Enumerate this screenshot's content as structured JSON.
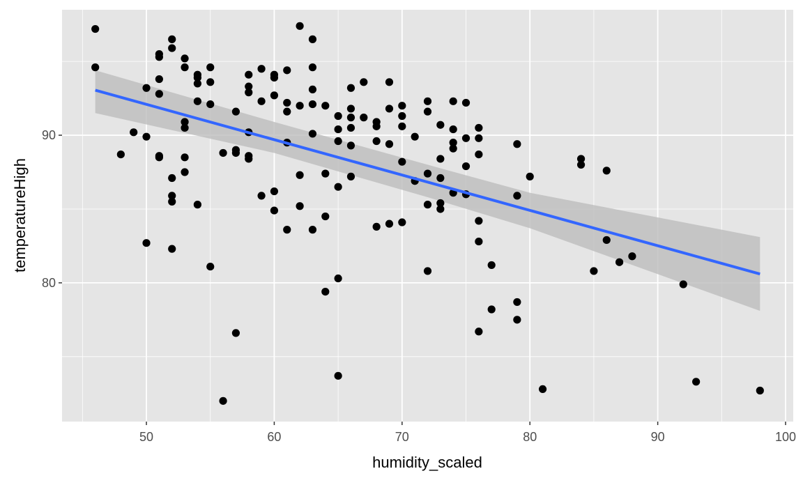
{
  "chart_data": {
    "type": "scatter",
    "title": "",
    "xlabel": "humidity_scaled",
    "ylabel": "temperatureHigh",
    "xlim": [
      43.4,
      100.6
    ],
    "ylim": [
      70.6,
      98.5
    ],
    "x_ticks": [
      50,
      60,
      70,
      80,
      90,
      100
    ],
    "y_ticks": [
      80,
      90
    ],
    "x_tick_labels": [
      "50",
      "60",
      "70",
      "80",
      "90",
      "100"
    ],
    "y_tick_labels": [
      "80",
      "90"
    ],
    "grid": true,
    "legend": "none",
    "colors": {
      "panel_background": "#e5e5e5",
      "grid_line": "#ffffff",
      "point": "#000000",
      "smooth_line": "#3366ff",
      "confidence_band": "#bdbdbd"
    },
    "smooth": {
      "method": "linear",
      "se": true,
      "line": [
        [
          46,
          93.05
        ],
        [
          98,
          80.6
        ]
      ],
      "band_upper": [
        [
          46,
          94.4
        ],
        [
          60,
          90.9
        ],
        [
          72,
          88.0
        ],
        [
          80,
          86.1
        ],
        [
          98,
          83.1
        ]
      ],
      "band_lower": [
        [
          46,
          91.5
        ],
        [
          60,
          88.8
        ],
        [
          72,
          85.8
        ],
        [
          80,
          83.7
        ],
        [
          98,
          78.1
        ]
      ]
    },
    "points": [
      [
        46,
        97.2
      ],
      [
        46,
        94.6
      ],
      [
        48,
        88.7
      ],
      [
        49,
        90.2
      ],
      [
        50,
        93.2
      ],
      [
        50,
        89.9
      ],
      [
        50,
        82.7
      ],
      [
        51,
        95.5
      ],
      [
        51,
        95.3
      ],
      [
        51,
        93.8
      ],
      [
        51,
        92.8
      ],
      [
        51,
        88.6
      ],
      [
        51,
        88.5
      ],
      [
        52,
        96.5
      ],
      [
        52,
        95.9
      ],
      [
        52,
        87.1
      ],
      [
        52,
        85.9
      ],
      [
        52,
        85.5
      ],
      [
        52,
        82.3
      ],
      [
        53,
        95.2
      ],
      [
        53,
        94.6
      ],
      [
        53,
        90.9
      ],
      [
        53,
        90.5
      ],
      [
        53,
        88.5
      ],
      [
        53,
        87.5
      ],
      [
        54,
        94.1
      ],
      [
        54,
        93.9
      ],
      [
        54,
        93.5
      ],
      [
        54,
        92.3
      ],
      [
        54,
        85.3
      ],
      [
        55,
        94.6
      ],
      [
        55,
        93.6
      ],
      [
        55,
        92.1
      ],
      [
        55,
        81.1
      ],
      [
        56,
        88.8
      ],
      [
        56,
        72.0
      ],
      [
        57,
        91.6
      ],
      [
        57,
        89.0
      ],
      [
        57,
        88.8
      ],
      [
        57,
        76.6
      ],
      [
        58,
        94.1
      ],
      [
        58,
        93.3
      ],
      [
        58,
        92.9
      ],
      [
        58,
        90.2
      ],
      [
        58,
        88.6
      ],
      [
        58,
        88.4
      ],
      [
        59,
        94.5
      ],
      [
        59,
        92.3
      ],
      [
        59,
        85.9
      ],
      [
        60,
        94.1
      ],
      [
        60,
        93.9
      ],
      [
        60,
        92.7
      ],
      [
        60,
        86.2
      ],
      [
        60,
        84.9
      ],
      [
        61,
        94.4
      ],
      [
        61,
        92.2
      ],
      [
        61,
        91.6
      ],
      [
        61,
        89.5
      ],
      [
        61,
        83.6
      ],
      [
        62,
        97.4
      ],
      [
        62,
        92.0
      ],
      [
        62,
        87.3
      ],
      [
        62,
        85.2
      ],
      [
        63,
        96.5
      ],
      [
        63,
        94.6
      ],
      [
        63,
        93.1
      ],
      [
        63,
        92.1
      ],
      [
        63,
        90.1
      ],
      [
        63,
        83.6
      ],
      [
        64,
        92.0
      ],
      [
        64,
        87.4
      ],
      [
        64,
        84.5
      ],
      [
        64,
        79.4
      ],
      [
        65,
        91.3
      ],
      [
        65,
        90.4
      ],
      [
        65,
        89.6
      ],
      [
        65,
        86.5
      ],
      [
        65,
        80.3
      ],
      [
        65,
        73.7
      ],
      [
        66,
        93.2
      ],
      [
        66,
        91.8
      ],
      [
        66,
        91.2
      ],
      [
        66,
        90.5
      ],
      [
        66,
        89.3
      ],
      [
        66,
        87.2
      ],
      [
        67,
        93.6
      ],
      [
        67,
        91.2
      ],
      [
        68,
        90.9
      ],
      [
        68,
        90.6
      ],
      [
        68,
        89.6
      ],
      [
        68,
        83.8
      ],
      [
        69,
        93.6
      ],
      [
        69,
        91.8
      ],
      [
        69,
        89.4
      ],
      [
        69,
        84.0
      ],
      [
        70,
        92.0
      ],
      [
        70,
        91.3
      ],
      [
        70,
        90.6
      ],
      [
        70,
        88.2
      ],
      [
        70,
        84.1
      ],
      [
        71,
        89.9
      ],
      [
        71,
        86.9
      ],
      [
        72,
        92.3
      ],
      [
        72,
        91.6
      ],
      [
        72,
        87.4
      ],
      [
        72,
        85.3
      ],
      [
        72,
        80.8
      ],
      [
        73,
        90.7
      ],
      [
        73,
        88.4
      ],
      [
        73,
        87.1
      ],
      [
        73,
        85.4
      ],
      [
        73,
        85.0
      ],
      [
        74,
        92.3
      ],
      [
        74,
        90.4
      ],
      [
        74,
        89.5
      ],
      [
        74,
        89.1
      ],
      [
        74,
        86.1
      ],
      [
        75,
        92.2
      ],
      [
        75,
        89.8
      ],
      [
        75,
        87.9
      ],
      [
        75,
        86.0
      ],
      [
        76,
        90.5
      ],
      [
        76,
        89.8
      ],
      [
        76,
        88.7
      ],
      [
        76,
        84.2
      ],
      [
        76,
        82.8
      ],
      [
        76,
        76.7
      ],
      [
        77,
        81.2
      ],
      [
        77,
        78.2
      ],
      [
        79,
        89.4
      ],
      [
        79,
        85.9
      ],
      [
        79,
        78.7
      ],
      [
        79,
        77.5
      ],
      [
        80,
        87.2
      ],
      [
        81,
        72.8
      ],
      [
        84,
        88.4
      ],
      [
        84,
        88.0
      ],
      [
        85,
        80.8
      ],
      [
        86,
        87.6
      ],
      [
        86,
        82.9
      ],
      [
        87,
        81.4
      ],
      [
        88,
        81.8
      ],
      [
        92,
        79.9
      ],
      [
        93,
        73.3
      ],
      [
        98,
        72.7
      ]
    ]
  }
}
